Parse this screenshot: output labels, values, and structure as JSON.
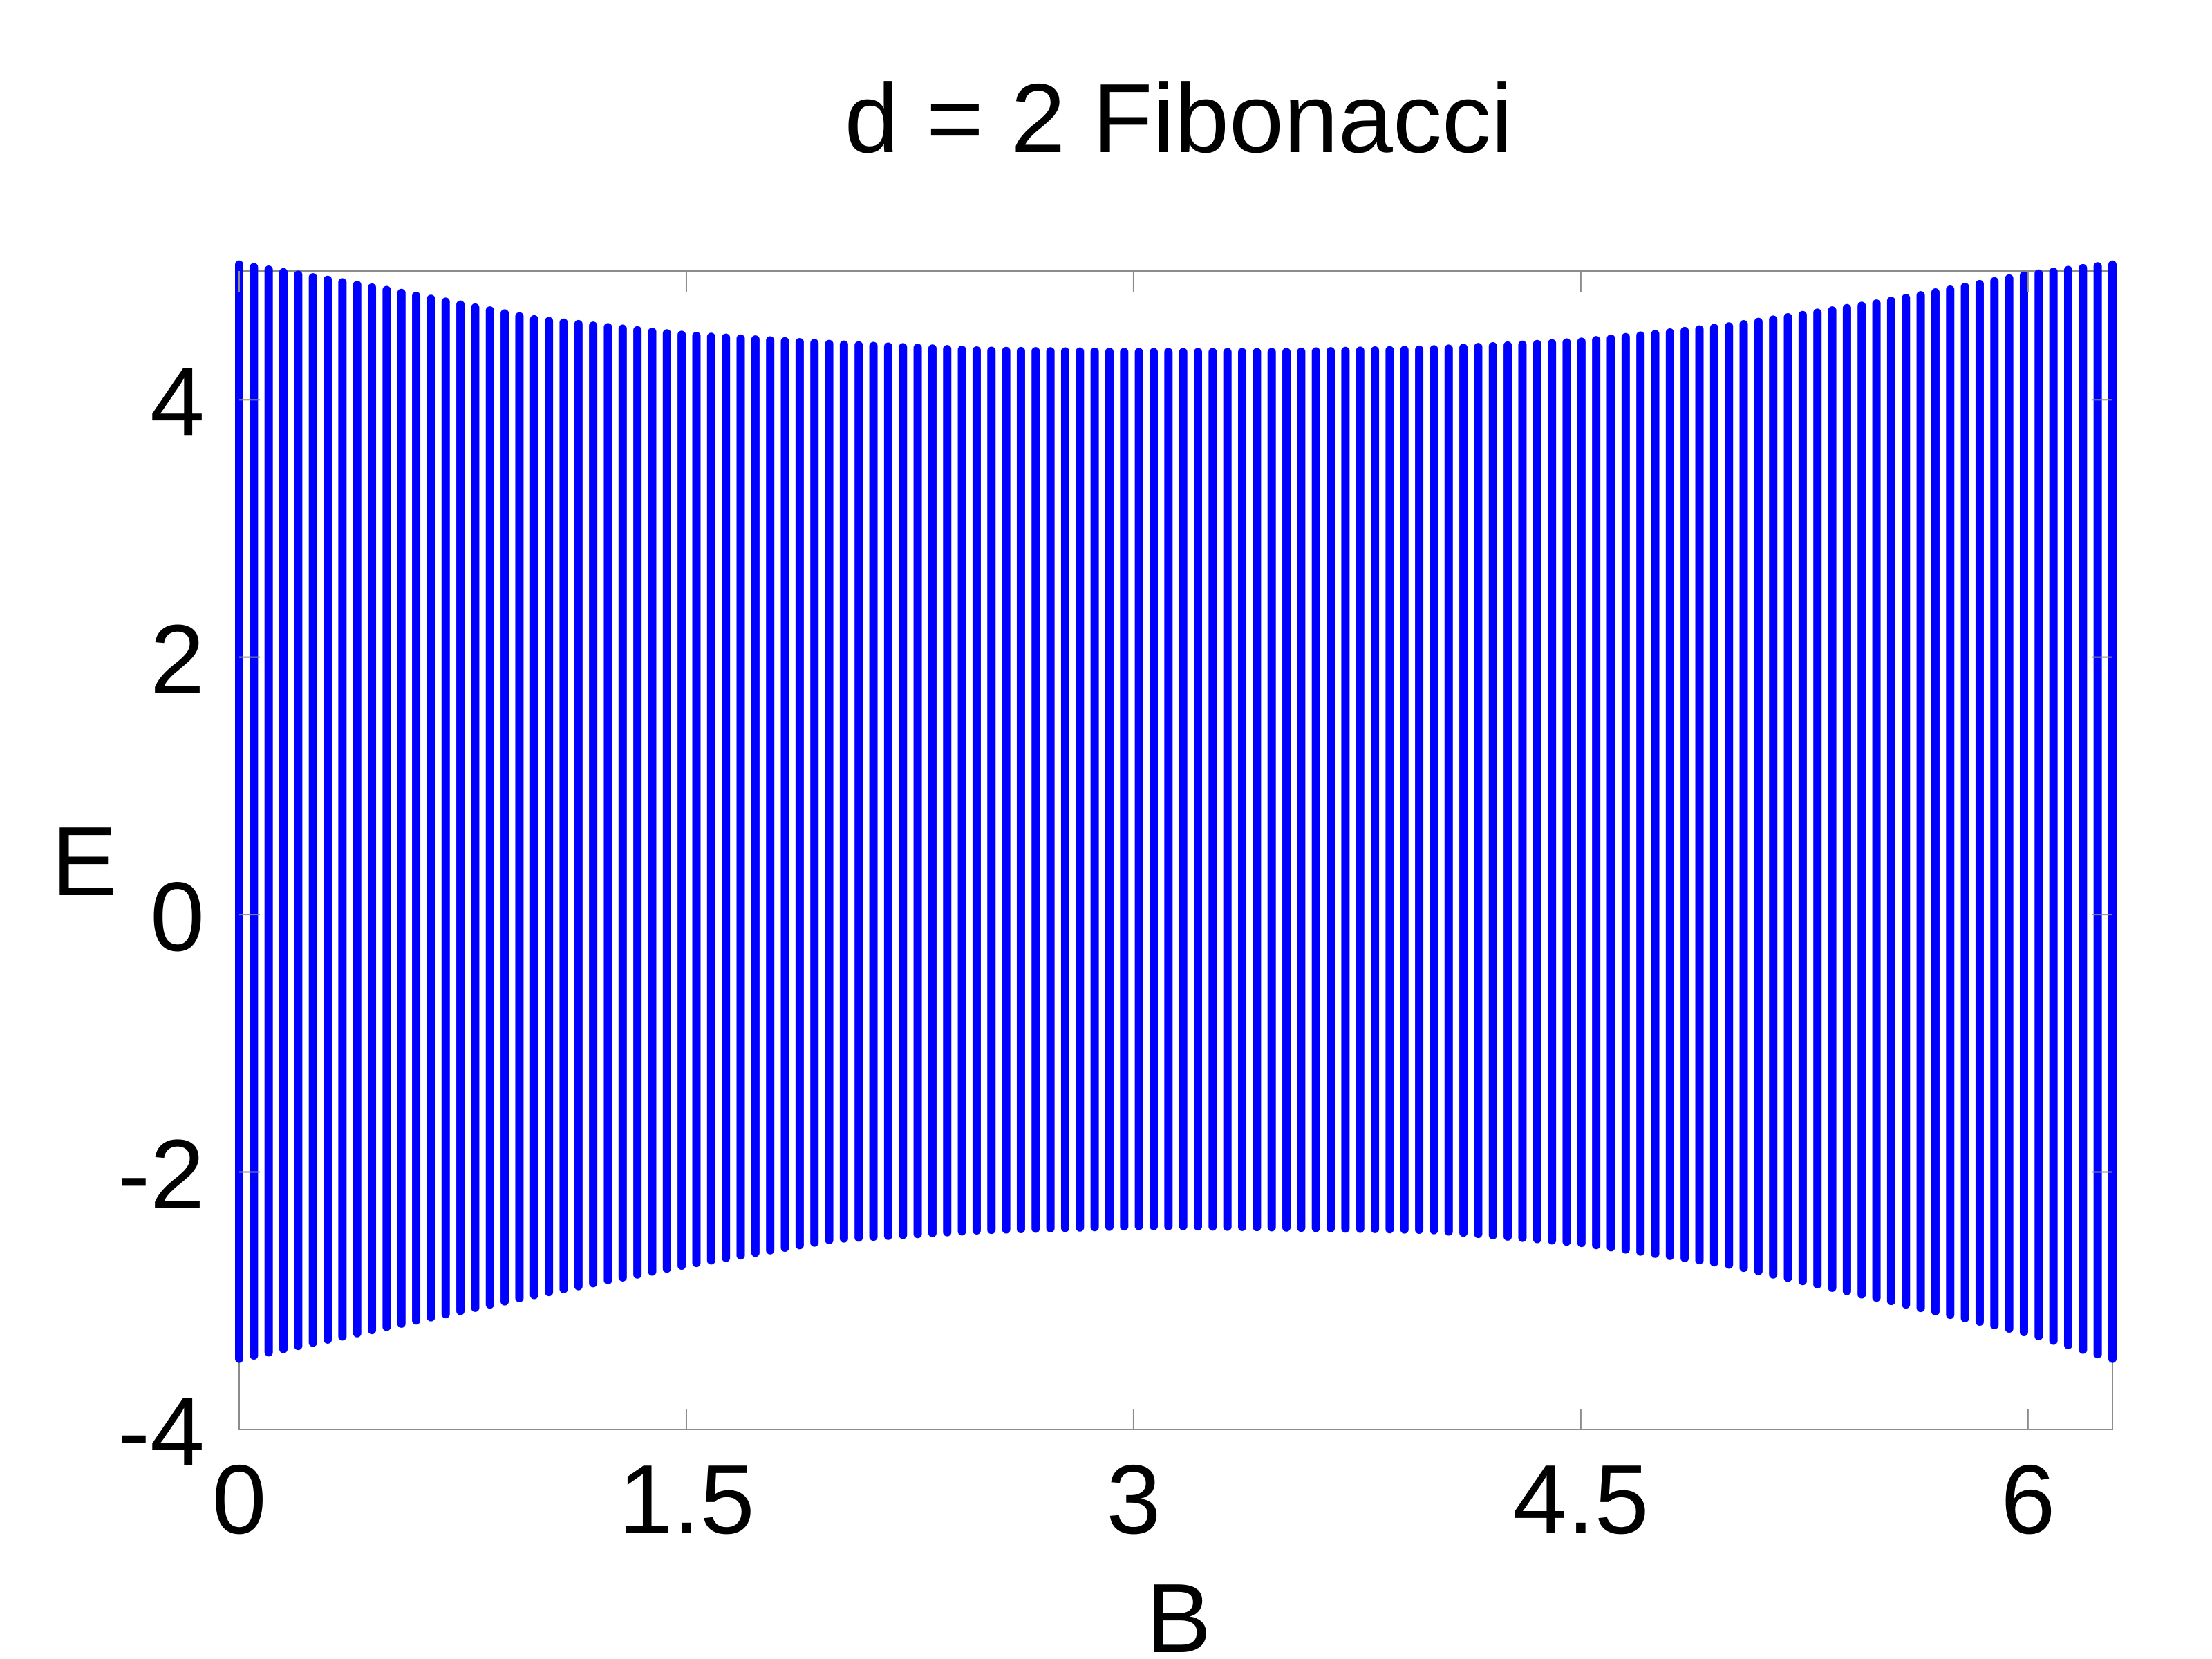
{
  "chart_data": {
    "type": "scatter",
    "title": "d = 2 Fibonacci",
    "xlabel": "B",
    "ylabel": "E",
    "xlim": [
      0,
      6.2832
    ],
    "ylim": [
      -4,
      5
    ],
    "xticks": [
      0,
      1.5,
      3,
      4.5,
      6
    ],
    "yticks": [
      -4,
      -2,
      0,
      2,
      4
    ],
    "xtick_labels": [
      "0",
      "1.5",
      "3",
      "4.5",
      "6"
    ],
    "ytick_labels": [
      "-4",
      "-2",
      "0",
      "2",
      "4"
    ],
    "grid": false,
    "legend": "none",
    "series": [
      {
        "color": "#0000ff",
        "marker": "dot",
        "description_of_points": "band spectrum sampled at 128 evenly spaced B values from 0 to 2*pi",
        "num_columns": 128,
        "envelope": {
          "B": [
            0,
            0.5,
            1.0,
            1.5,
            2.0,
            2.5,
            3.0,
            3.1416,
            3.5,
            4.0,
            4.5,
            5.0,
            5.5,
            6.0,
            6.2832
          ],
          "E_max": [
            5.05,
            4.85,
            4.62,
            4.5,
            4.43,
            4.38,
            4.37,
            4.37,
            4.37,
            4.39,
            4.45,
            4.57,
            4.75,
            4.97,
            5.05
          ],
          "E_min": [
            -3.45,
            -3.2,
            -2.95,
            -2.72,
            -2.52,
            -2.45,
            -2.42,
            -2.42,
            -2.43,
            -2.45,
            -2.55,
            -2.72,
            -2.98,
            -3.25,
            -3.45
          ]
        }
      }
    ]
  }
}
